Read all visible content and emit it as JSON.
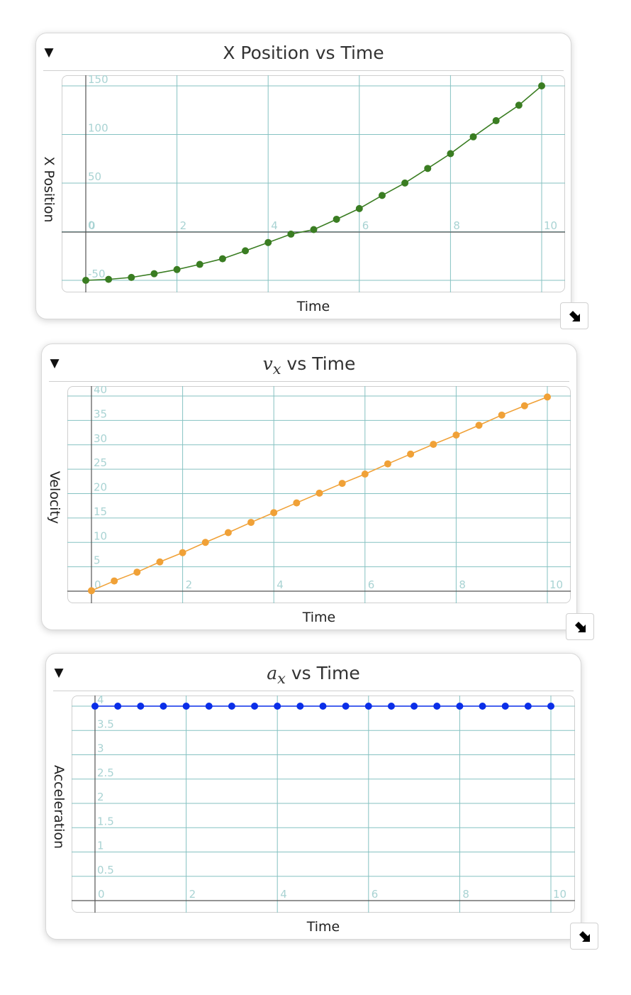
{
  "panels": [
    {
      "title": "X Position vs Time",
      "toggle": "▼",
      "chart_data": {
        "type": "line",
        "title": "X Position vs Time",
        "xlabel": "Time",
        "ylabel": "X Position",
        "xlim": [
          0,
          10
        ],
        "ylim": [
          -50,
          150
        ],
        "xticks": [
          0,
          2,
          4,
          6,
          8,
          10
        ],
        "yticks": [
          -50,
          0,
          50,
          100,
          150
        ],
        "xtick_labels": [
          "0",
          "2",
          "4",
          "6",
          "8",
          "10"
        ],
        "ytick_labels": [
          "-50",
          "0",
          "50",
          "100",
          "150"
        ],
        "grid": true,
        "color": "#3a7d22",
        "x": [
          0,
          0.5,
          1,
          1.5,
          2,
          2.5,
          3,
          3.5,
          4,
          4.5,
          5,
          5.5,
          6,
          6.5,
          7,
          7.5,
          8,
          8.5,
          9,
          9.5,
          10
        ],
        "y": [
          -50,
          -49,
          -47,
          -43.2,
          -38.9,
          -33.6,
          -27.8,
          -19.6,
          -11.1,
          -2.5,
          2.2,
          12.8,
          23.8,
          37.3,
          50.1,
          65.1,
          80.3,
          97.6,
          114.2,
          130.1,
          150
        ]
      }
    },
    {
      "title_math": "v",
      "title_sub": "x",
      "title_rest": " vs Time",
      "toggle": "▼",
      "chart_data": {
        "type": "line",
        "title": "vx vs Time",
        "xlabel": "Time",
        "ylabel": "Velocity",
        "xlim": [
          0,
          10
        ],
        "ylim": [
          0,
          40
        ],
        "xticks": [
          0,
          2,
          4,
          6,
          8,
          10
        ],
        "yticks": [
          0,
          5,
          10,
          15,
          20,
          25,
          30,
          35,
          40
        ],
        "xtick_labels": [
          "0",
          "2",
          "4",
          "6",
          "8",
          "10"
        ],
        "ytick_labels": [
          "0",
          "5",
          "10",
          "15",
          "20",
          "25",
          "30",
          "35",
          "40"
        ],
        "grid": true,
        "color": "#f0a137",
        "x": [
          0,
          0.5,
          1,
          1.5,
          2,
          2.5,
          3,
          3.5,
          4,
          4.5,
          5,
          5.5,
          6,
          6.5,
          7,
          7.5,
          8,
          8.5,
          9,
          9.5,
          10
        ],
        "y": [
          0.1,
          2.1,
          3.9,
          6.0,
          7.9,
          10.0,
          12.0,
          14.1,
          16.1,
          18.1,
          20.1,
          22.1,
          24.0,
          26.1,
          28.1,
          30.1,
          32.0,
          34.0,
          36.1,
          38.0,
          39.8
        ]
      }
    },
    {
      "title_math": "a",
      "title_sub": "x",
      "title_rest": " vs Time",
      "toggle": "▼",
      "chart_data": {
        "type": "line",
        "title": "ax vs Time",
        "xlabel": "Time",
        "ylabel": "Acceleration",
        "xlim": [
          0,
          10
        ],
        "ylim": [
          0,
          4
        ],
        "xticks": [
          0,
          2,
          4,
          6,
          8,
          10
        ],
        "yticks": [
          0,
          0.5,
          1,
          1.5,
          2,
          2.5,
          3,
          3.5,
          4
        ],
        "xtick_labels": [
          "0",
          "2",
          "4",
          "6",
          "8",
          "10"
        ],
        "ytick_labels": [
          "0",
          "0.5",
          "1",
          "1.5",
          "2",
          "2.5",
          "3",
          "3.5",
          "4"
        ],
        "grid": true,
        "color": "#0a2ee8",
        "x": [
          0,
          0.5,
          1,
          1.5,
          2,
          2.5,
          3,
          3.5,
          4,
          4.5,
          5,
          5.5,
          6,
          6.5,
          7,
          7.5,
          8,
          8.5,
          9,
          9.5,
          10
        ],
        "y": [
          4,
          4,
          4,
          4,
          4,
          4,
          4,
          4,
          4,
          4,
          4,
          4,
          4,
          4,
          4,
          4,
          4,
          4,
          4,
          4,
          4
        ]
      }
    }
  ]
}
